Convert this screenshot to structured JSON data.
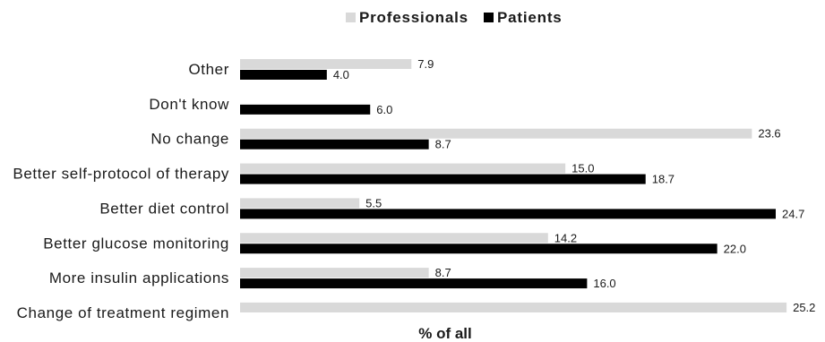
{
  "chart_data": {
    "type": "bar",
    "orientation": "horizontal",
    "title": "",
    "xlabel": "% of all",
    "ylabel": "",
    "xlim": [
      0,
      25.2
    ],
    "grid": false,
    "legend_position": "top-center",
    "categories": [
      "Other",
      "Don't know",
      "No change",
      "Better self-protocol of therapy",
      "Better diet control",
      "Better glucose monitoring",
      "More insulin applications",
      "Change of treatment regimen"
    ],
    "series": [
      {
        "name": "Professionals",
        "color": "#d9d9d9",
        "values": [
          7.9,
          null,
          23.6,
          15.0,
          5.5,
          14.2,
          8.7,
          25.2
        ]
      },
      {
        "name": "Patients",
        "color": "#000000",
        "values": [
          4.0,
          6.0,
          8.7,
          18.7,
          24.7,
          22.0,
          16.0,
          null
        ]
      }
    ]
  }
}
